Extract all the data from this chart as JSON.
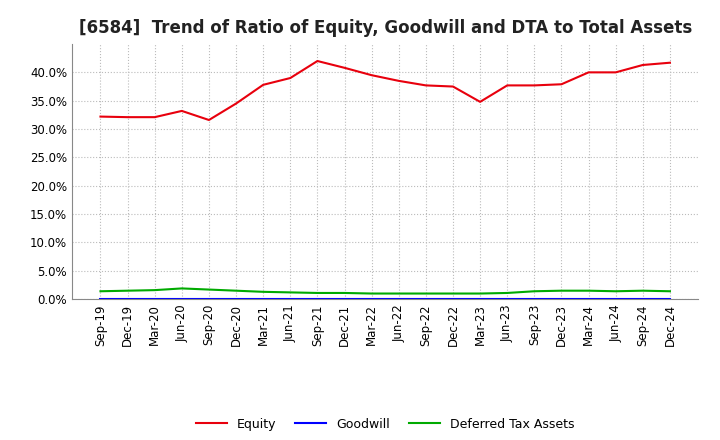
{
  "title": "[6584]  Trend of Ratio of Equity, Goodwill and DTA to Total Assets",
  "x_labels": [
    "Sep-19",
    "Dec-19",
    "Mar-20",
    "Jun-20",
    "Sep-20",
    "Dec-20",
    "Mar-21",
    "Jun-21",
    "Sep-21",
    "Dec-21",
    "Mar-22",
    "Jun-22",
    "Sep-22",
    "Dec-22",
    "Mar-23",
    "Jun-23",
    "Sep-23",
    "Dec-23",
    "Mar-24",
    "Jun-24",
    "Sep-24",
    "Dec-24"
  ],
  "equity": [
    0.322,
    0.321,
    0.321,
    0.332,
    0.316,
    0.345,
    0.378,
    0.39,
    0.42,
    0.408,
    0.395,
    0.385,
    0.377,
    0.375,
    0.348,
    0.377,
    0.377,
    0.379,
    0.4,
    0.4,
    0.413,
    0.417
  ],
  "goodwill": [
    0.001,
    0.001,
    0.001,
    0.001,
    0.001,
    0.001,
    0.001,
    0.001,
    0.001,
    0.001,
    0.001,
    0.001,
    0.001,
    0.001,
    0.001,
    0.001,
    0.001,
    0.001,
    0.001,
    0.001,
    0.001,
    0.001
  ],
  "dta": [
    0.014,
    0.015,
    0.016,
    0.019,
    0.017,
    0.015,
    0.013,
    0.012,
    0.011,
    0.011,
    0.01,
    0.01,
    0.01,
    0.01,
    0.01,
    0.011,
    0.014,
    0.015,
    0.015,
    0.014,
    0.015,
    0.014
  ],
  "equity_color": "#e8000d",
  "goodwill_color": "#0000ff",
  "dta_color": "#00aa00",
  "ylim": [
    0.0,
    0.45
  ],
  "yticks": [
    0.0,
    0.05,
    0.1,
    0.15,
    0.2,
    0.25,
    0.3,
    0.35,
    0.4
  ],
  "background_color": "#ffffff",
  "grid_color": "#bbbbbb",
  "title_fontsize": 12,
  "tick_fontsize": 8.5,
  "legend_fontsize": 9
}
